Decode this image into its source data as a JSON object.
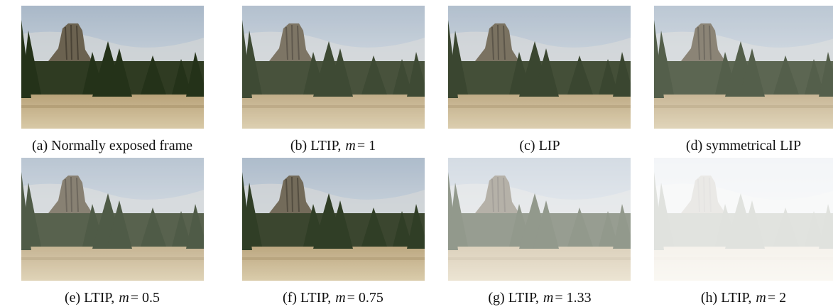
{
  "figure": {
    "panels": [
      {
        "caption": {
          "text": "(a) Normally exposed frame"
        }
      },
      {
        "caption": {
          "text": "(b) LTIP,",
          "variable": "m",
          "equation": "= 1"
        }
      },
      {
        "caption": {
          "text": "(c) LIP"
        }
      },
      {
        "caption": {
          "text": "(d) symmetrical LIP"
        }
      },
      {
        "caption": {
          "text": "(e) LTIP,",
          "variable": "m",
          "equation": "= 0.5"
        }
      },
      {
        "caption": {
          "text": "(f) LTIP,",
          "variable": "m",
          "equation": "= 0.75"
        }
      },
      {
        "caption": {
          "text": "(g) LTIP,",
          "variable": "m",
          "equation": "= 1.33"
        }
      },
      {
        "caption": {
          "text": "(h) LTIP,",
          "variable": "m",
          "equation": "= 2"
        }
      }
    ]
  }
}
